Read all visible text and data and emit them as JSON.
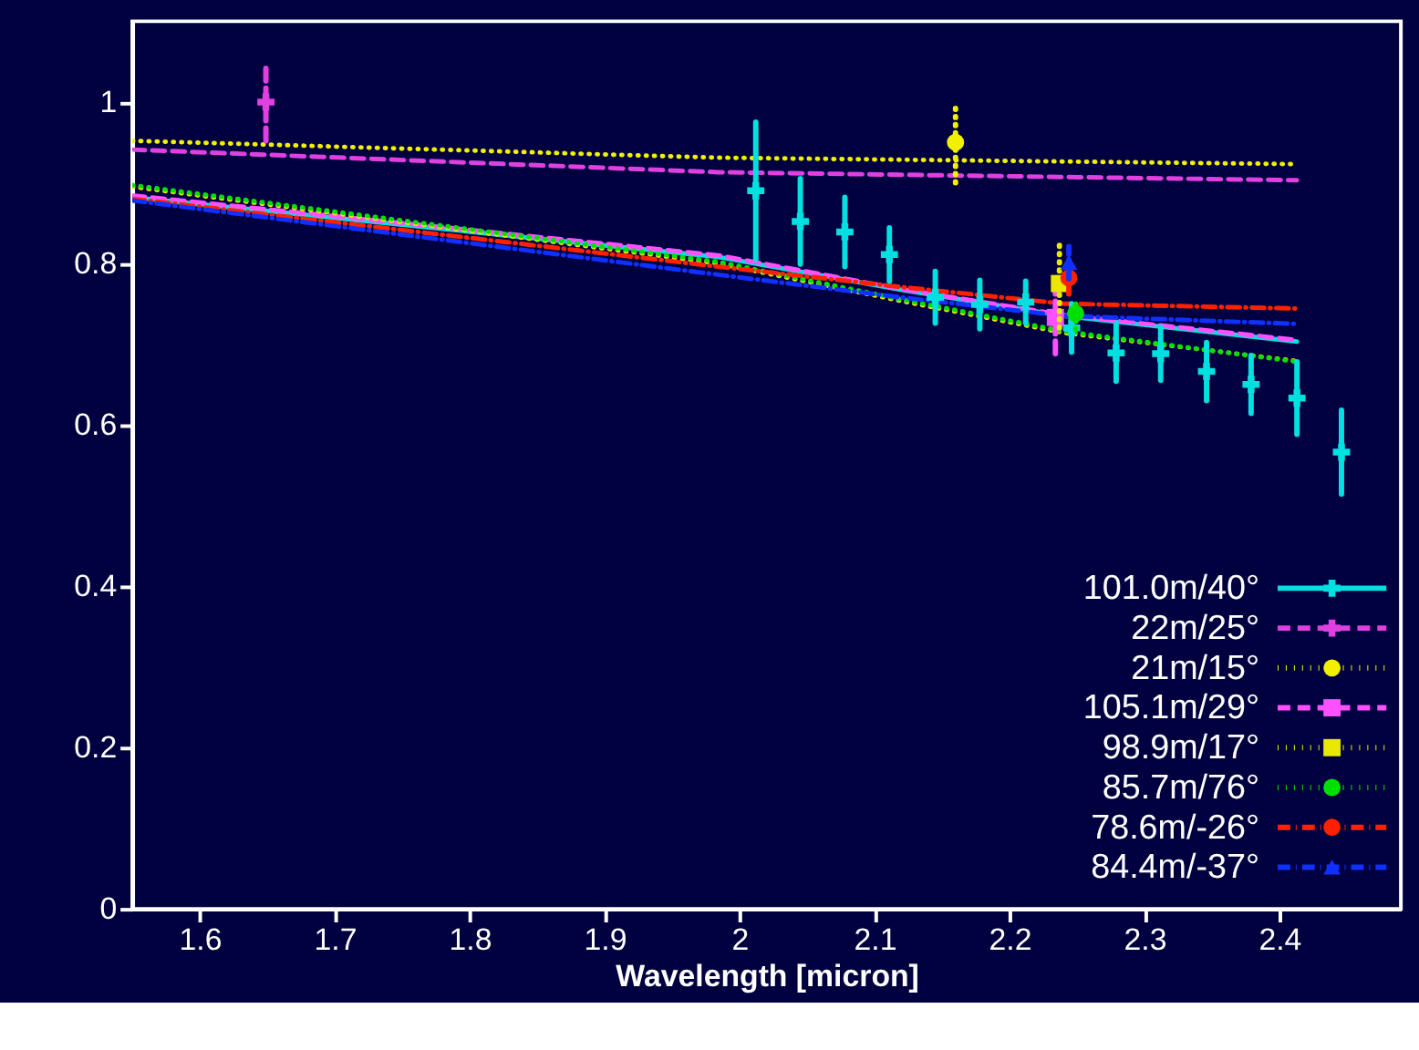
{
  "chart_data": {
    "type": "line",
    "xlabel": "Wavelength [micron]",
    "xlim": [
      1.55,
      2.49
    ],
    "ylim": [
      0,
      1.1
    ],
    "xticks": [
      1.6,
      1.7,
      1.8,
      1.9,
      2,
      2.1,
      2.2,
      2.3,
      2.4
    ],
    "yticks": [
      0,
      0.2,
      0.4,
      0.6,
      0.8,
      1
    ],
    "grid": false,
    "legend": "bottom right",
    "series": [
      {
        "color": "#00e0e0",
        "line_style": "solid",
        "x": [
          1.55,
          1.984,
          2.124,
          2.24,
          2.413
        ],
        "values": [
          0.882,
          0.808,
          0.766,
          0.735,
          0.703
        ]
      },
      {
        "color": "#e040e0",
        "line_style": "dashed",
        "x": [
          1.55,
          1.984,
          2.413
        ],
        "values": [
          0.941,
          0.913,
          0.903
        ]
      },
      {
        "color": "#f0f000",
        "line_style": "dotted",
        "x": [
          1.55,
          1.984,
          2.413
        ],
        "values": [
          0.952,
          0.931,
          0.923
        ]
      },
      {
        "color": "#ff50ff",
        "line_style": "dashed",
        "x": [
          1.55,
          1.984,
          2.124,
          2.24,
          2.413
        ],
        "values": [
          0.884,
          0.81,
          0.767,
          0.736,
          0.705
        ]
      },
      {
        "color": "#e8e800",
        "line_style": "dotted",
        "x": [
          1.55,
          1.984,
          2.124,
          2.24,
          2.413
        ],
        "values": [
          0.895,
          0.8,
          0.752,
          0.714,
          0.679
        ]
      },
      {
        "color": "#00e000",
        "line_style": "dotted",
        "x": [
          1.55,
          1.984,
          2.124,
          2.24,
          2.413
        ],
        "values": [
          0.897,
          0.802,
          0.754,
          0.716,
          0.678
        ]
      },
      {
        "color": "#ff2000",
        "line_style": "dashdot",
        "x": [
          1.55,
          1.984,
          2.124,
          2.24,
          2.413
        ],
        "values": [
          0.88,
          0.796,
          0.77,
          0.75,
          0.744
        ]
      },
      {
        "color": "#1030ff",
        "line_style": "dashdot",
        "x": [
          1.55,
          1.984,
          2.124,
          2.24,
          2.413
        ],
        "values": [
          0.878,
          0.786,
          0.757,
          0.735,
          0.725
        ]
      },
      {
        "type": "scatter",
        "name": "101.0m/40°",
        "color": "#00e0e0",
        "line_style": "solid",
        "marker": "cross",
        "x": [
          2.012,
          2.045,
          2.078,
          2.111,
          2.145,
          2.178,
          2.212,
          2.246,
          2.279,
          2.312,
          2.346,
          2.379,
          2.413,
          2.446
        ],
        "values": [
          0.89,
          0.852,
          0.839,
          0.811,
          0.758,
          0.749,
          0.752,
          0.72,
          0.689,
          0.688,
          0.666,
          0.65,
          0.633,
          0.566
        ],
        "errors": [
          0.085,
          0.053,
          0.043,
          0.033,
          0.032,
          0.03,
          0.026,
          0.03,
          0.035,
          0.033,
          0.036,
          0.036,
          0.045,
          0.052
        ]
      },
      {
        "type": "scatter",
        "name": "22m/25°",
        "color": "#e040e0",
        "line_style": "dashed",
        "marker": "cross",
        "x": [
          1.649
        ],
        "values": [
          1.0
        ],
        "errors": [
          0.048
        ]
      },
      {
        "type": "scatter",
        "name": "21m/15°",
        "color": "#f0f000",
        "line_style": "dotted",
        "marker": "circle",
        "x": [
          2.16
        ],
        "values": [
          0.95
        ],
        "errors": [
          0.05
        ]
      },
      {
        "type": "scatter",
        "name": "105.1m/29°",
        "color": "#ff50ff",
        "line_style": "dashed",
        "marker": "square",
        "x": [
          2.234
        ],
        "values": [
          0.733
        ],
        "errors": [
          0.045
        ]
      },
      {
        "type": "scatter",
        "name": "98.9m/17°",
        "color": "#e8e800",
        "line_style": "dotted",
        "marker": "square",
        "x": [
          2.237
        ],
        "values": [
          0.775
        ],
        "errors": [
          0.055
        ]
      },
      {
        "type": "scatter",
        "name": "85.7m/76°",
        "color": "#00e000",
        "line_style": "dotted",
        "marker": "circle",
        "x": [
          2.249
        ],
        "values": [
          0.738
        ],
        "errors": [
          0.02
        ]
      },
      {
        "type": "scatter",
        "name": "78.6m/-26°",
        "color": "#ff2000",
        "line_style": "dashdot",
        "marker": "circle",
        "x": [
          2.244
        ],
        "values": [
          0.782
        ],
        "errors": [
          0.02
        ]
      },
      {
        "type": "scatter",
        "name": "84.4m/-37°",
        "color": "#1030ff",
        "line_style": "dashdot",
        "marker": "triangle",
        "x": [
          2.244
        ],
        "values": [
          0.801
        ],
        "errors": [
          0.02
        ]
      }
    ]
  }
}
